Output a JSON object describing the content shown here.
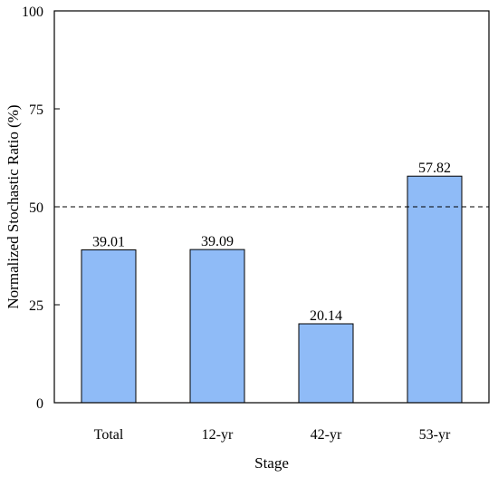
{
  "chart_data": {
    "type": "bar",
    "categories": [
      "Total",
      "12-yr",
      "42-yr",
      "53-yr"
    ],
    "values": [
      39.01,
      39.09,
      20.14,
      57.82
    ],
    "data_labels": [
      "39.01",
      "39.09",
      "20.14",
      "57.82"
    ],
    "xlabel": "Stage",
    "ylabel": "Normalized Stochastic Ratio (%)",
    "ylim": [
      0,
      100
    ],
    "yticks": [
      0,
      25,
      50,
      75,
      100
    ],
    "yticklabels": [
      "0",
      "25",
      "50",
      "75",
      "100"
    ],
    "reference_line": {
      "y": 50,
      "style": "dashed"
    },
    "grid": false,
    "bar_color": "#8fbbf7",
    "bar_edge_color": "#000000"
  }
}
